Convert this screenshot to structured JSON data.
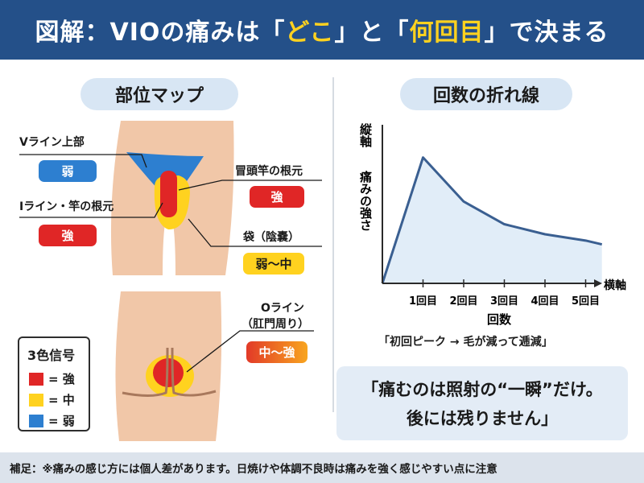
{
  "title": {
    "prefix": "図解：VIOの痛みは「",
    "hl1": "どこ",
    "middle": "」と「",
    "hl2": "何回目",
    "suffix": "」で決まる"
  },
  "left_panel": {
    "heading": "部位マップ",
    "callouts": {
      "v_line": {
        "label": "Vライン上部",
        "level": "弱"
      },
      "i_line": {
        "label": "Iライン・竿の根元",
        "level": "強"
      },
      "glans_base": {
        "label": "冒頭竿の根元",
        "level": "強"
      },
      "scrotum": {
        "label": "袋（陰嚢）",
        "level": "弱〜中"
      },
      "o_line": {
        "label_line1": "Oライン",
        "label_line2": "（肛門周り）",
        "level": "中〜強"
      }
    },
    "legend": {
      "title": "3色信号",
      "items": [
        {
          "text": "= 強",
          "color": "#e02626"
        },
        {
          "text": "= 中",
          "color": "#ffd21f"
        },
        {
          "text": "= 弱",
          "color": "#2d7fd0"
        }
      ]
    }
  },
  "right_panel": {
    "heading": "回数の折れ線",
    "y_axis_label_1": "縦軸",
    "y_axis_label_2": "痛みの強さ",
    "x_axis_label": "横軸",
    "x_axis_title": "回数",
    "caption": "「初回ピーク → 毛が減って逓減」",
    "quote_line1": "「痛むのは照射の“一瞬”だけ。",
    "quote_line2": "後には残りません」"
  },
  "chart_data": {
    "type": "area",
    "categories": [
      "1回目",
      "2回目",
      "3回目",
      "4回目",
      "5回目"
    ],
    "x": [
      0,
      1,
      2,
      3,
      4,
      5,
      5.4
    ],
    "values": [
      0,
      10,
      6.5,
      4.7,
      3.9,
      3.4,
      3.1
    ],
    "xlabel": "横軸",
    "ylabel": "縦軸 痛みの強さ",
    "x_title": "回数",
    "ylim": [
      0,
      11
    ],
    "line_color": "#3a5f91",
    "fill_color": "#e1edf8",
    "grid": false
  },
  "footer": "補足：※痛みの感じ方には個人差があります。日焼けや体調不良時は痛みを強く感じやすい点に注意",
  "colors": {
    "title_bg": "#245089",
    "highlight": "#ffd21f",
    "skin": "#f1c7a8",
    "red": "#e02626",
    "yellow": "#ffd21f",
    "blue": "#2d7fd0"
  }
}
